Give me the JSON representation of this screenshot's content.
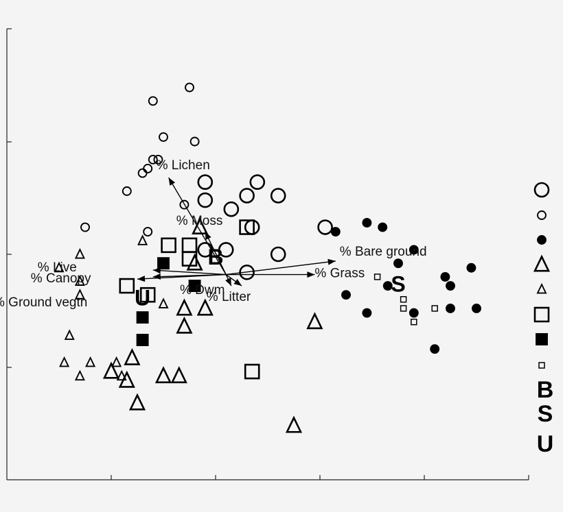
{
  "chart_data": {
    "type": "scatter",
    "title": "",
    "xlabel": "",
    "ylabel": "",
    "xlim": [
      0,
      10
    ],
    "ylim": [
      0,
      10
    ],
    "grid": false,
    "legend_position": "right",
    "symbols": {
      "circle_large": {
        "shape": "circle",
        "fill": "none",
        "size": "large"
      },
      "circle_small": {
        "shape": "circle",
        "fill": "none",
        "size": "small"
      },
      "circle_filled": {
        "shape": "circle",
        "fill": "black",
        "size": "small"
      },
      "triangle_large": {
        "shape": "triangle",
        "fill": "none",
        "size": "large"
      },
      "triangle_small": {
        "shape": "triangle",
        "fill": "none",
        "size": "small"
      },
      "square_large": {
        "shape": "square",
        "fill": "none",
        "size": "large"
      },
      "square_filled": {
        "shape": "square",
        "fill": "black",
        "size": "medium"
      },
      "square_small": {
        "shape": "square",
        "fill": "none",
        "size": "tiny"
      }
    },
    "legend": [
      {
        "symbol": "circle_large"
      },
      {
        "symbol": "circle_small"
      },
      {
        "symbol": "circle_filled"
      },
      {
        "symbol": "triangle_large"
      },
      {
        "symbol": "triangle_small"
      },
      {
        "symbol": "square_large"
      },
      {
        "symbol": "square_filled"
      },
      {
        "symbol": "square_small"
      },
      {
        "text": "B"
      },
      {
        "text": "S"
      },
      {
        "text": "U"
      }
    ],
    "series": [
      {
        "symbol": "circle_large",
        "points": [
          [
            3.8,
            6.6
          ],
          [
            3.8,
            6.2
          ],
          [
            4.3,
            6.0
          ],
          [
            4.6,
            6.3
          ],
          [
            4.8,
            6.6
          ],
          [
            5.2,
            6.3
          ],
          [
            4.7,
            5.6
          ],
          [
            4.2,
            5.1
          ],
          [
            3.8,
            5.1
          ],
          [
            5.2,
            5.0
          ],
          [
            6.1,
            5.6
          ],
          [
            4.6,
            4.6
          ]
        ]
      },
      {
        "symbol": "circle_small",
        "points": [
          [
            3.5,
            8.7
          ],
          [
            2.8,
            8.4
          ],
          [
            3.0,
            7.6
          ],
          [
            3.6,
            7.5
          ],
          [
            2.8,
            7.1
          ],
          [
            2.9,
            7.1
          ],
          [
            2.7,
            6.9
          ],
          [
            2.6,
            6.8
          ],
          [
            2.3,
            6.4
          ],
          [
            3.4,
            6.1
          ],
          [
            1.5,
            5.6
          ],
          [
            2.7,
            5.5
          ]
        ]
      },
      {
        "symbol": "circle_filled",
        "points": [
          [
            6.3,
            5.5
          ],
          [
            6.9,
            5.7
          ],
          [
            7.2,
            5.6
          ],
          [
            7.8,
            5.1
          ],
          [
            7.5,
            4.8
          ],
          [
            8.4,
            4.5
          ],
          [
            8.9,
            4.7
          ],
          [
            8.5,
            4.3
          ],
          [
            7.3,
            4.3
          ],
          [
            6.5,
            4.1
          ],
          [
            6.9,
            3.7
          ],
          [
            7.8,
            3.7
          ],
          [
            8.5,
            3.8
          ],
          [
            9.0,
            3.8
          ],
          [
            8.2,
            2.9
          ]
        ]
      },
      {
        "symbol": "triangle_large",
        "points": [
          [
            3.7,
            5.6
          ],
          [
            3.6,
            4.8
          ],
          [
            3.8,
            3.8
          ],
          [
            3.4,
            3.8
          ],
          [
            3.4,
            3.4
          ],
          [
            2.4,
            2.7
          ],
          [
            2.0,
            2.4
          ],
          [
            2.3,
            2.2
          ],
          [
            3.0,
            2.3
          ],
          [
            3.3,
            2.3
          ],
          [
            2.5,
            1.7
          ],
          [
            5.9,
            3.5
          ],
          [
            5.5,
            1.2
          ]
        ]
      },
      {
        "symbol": "triangle_small",
        "points": [
          [
            1.4,
            5.0
          ],
          [
            2.6,
            5.3
          ],
          [
            1.0,
            4.7
          ],
          [
            1.4,
            4.4
          ],
          [
            1.4,
            4.1
          ],
          [
            3.0,
            3.9
          ],
          [
            1.2,
            3.2
          ],
          [
            1.1,
            2.6
          ],
          [
            1.6,
            2.6
          ],
          [
            2.1,
            2.6
          ],
          [
            1.4,
            2.3
          ],
          [
            2.2,
            2.3
          ]
        ]
      },
      {
        "symbol": "square_large",
        "points": [
          [
            3.1,
            5.2
          ],
          [
            3.5,
            5.2
          ],
          [
            3.5,
            4.9
          ],
          [
            4.6,
            5.6
          ],
          [
            2.3,
            4.3
          ],
          [
            2.7,
            4.1
          ],
          [
            4.7,
            2.4
          ]
        ]
      },
      {
        "symbol": "square_filled",
        "points": [
          [
            3.0,
            4.8
          ],
          [
            3.6,
            4.3
          ],
          [
            2.6,
            3.6
          ],
          [
            2.6,
            3.1
          ]
        ]
      },
      {
        "symbol": "square_small",
        "points": [
          [
            7.1,
            4.5
          ],
          [
            7.6,
            4.0
          ],
          [
            7.6,
            3.8
          ],
          [
            7.8,
            3.5
          ],
          [
            8.2,
            3.8
          ]
        ]
      }
    ],
    "group_labels": [
      {
        "text": "B",
        "x": 4.0,
        "y": 4.9
      },
      {
        "text": "S",
        "x": 7.5,
        "y": 4.3
      },
      {
        "text": "U",
        "x": 2.6,
        "y": 4.0
      }
    ],
    "vectors": {
      "origin": [
        4.2,
        4.55
      ],
      "items": [
        {
          "label": "% Lichen",
          "end": [
            3.1,
            6.7
          ]
        },
        {
          "label": "% Moss",
          "end": [
            3.8,
            5.5
          ]
        },
        {
          "label": "% Live",
          "end": [
            2.8,
            4.65
          ]
        },
        {
          "label": "% Canopy",
          "end": [
            2.8,
            4.5
          ]
        },
        {
          "label": "% Ground vegtn",
          "end": [
            2.5,
            4.45
          ]
        },
        {
          "label": "% Litter",
          "end": [
            4.3,
            4.3
          ]
        },
        {
          "label": "% Dwm",
          "end": [
            4.5,
            4.3
          ]
        },
        {
          "label": "% Bare ground",
          "end": [
            6.3,
            4.85
          ]
        },
        {
          "label": "% Grass",
          "end": [
            5.9,
            4.55
          ]
        }
      ]
    }
  }
}
